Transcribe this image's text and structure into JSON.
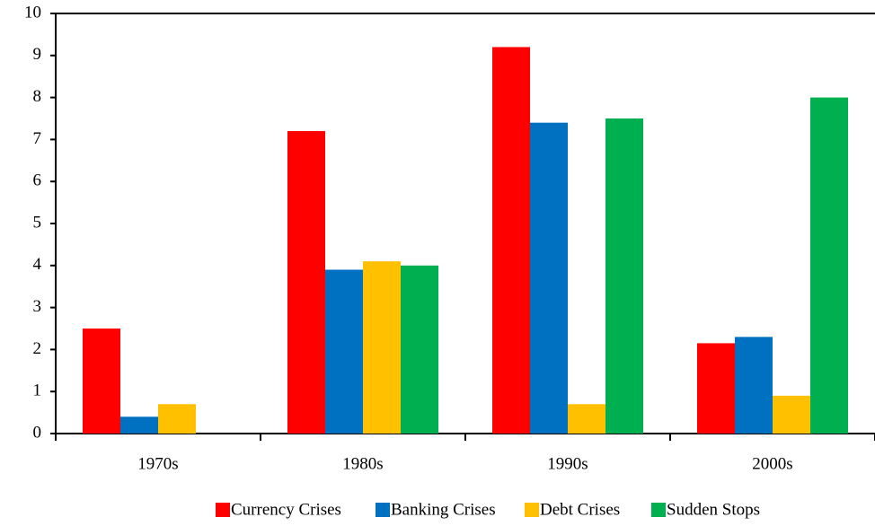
{
  "chart_data": {
    "type": "bar",
    "categories": [
      "1970s",
      "1980s",
      "1990s",
      "2000s"
    ],
    "series": [
      {
        "name": "Currency Crises",
        "color": "#ff0000",
        "values": [
          2.5,
          7.2,
          9.2,
          2.15
        ]
      },
      {
        "name": "Banking Crises",
        "color": "#0070c0",
        "values": [
          0.4,
          3.9,
          7.4,
          2.3
        ]
      },
      {
        "name": "Debt Crises",
        "color": "#ffc000",
        "values": [
          0.7,
          4.1,
          0.7,
          0.9
        ]
      },
      {
        "name": "Sudden Stops",
        "color": "#00b050",
        "values": [
          0,
          4.0,
          7.5,
          8.0
        ]
      }
    ],
    "ylim": [
      0,
      10
    ],
    "yticks": [
      0,
      1,
      2,
      3,
      4,
      5,
      6,
      7,
      8,
      9,
      10
    ],
    "grid": false,
    "legend": "bottom"
  }
}
